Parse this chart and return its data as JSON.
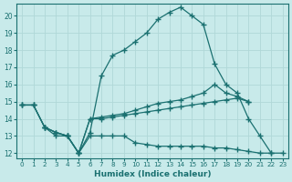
{
  "xlabel": "Humidex (Indice chaleur)",
  "background_color": "#c8eaea",
  "grid_color": "#b0d8d8",
  "line_color": "#1a7070",
  "xlim": [
    -0.5,
    23.5
  ],
  "ylim": [
    11.7,
    20.7
  ],
  "yticks": [
    12,
    13,
    14,
    15,
    16,
    17,
    18,
    19,
    20
  ],
  "xticks": [
    0,
    1,
    2,
    3,
    4,
    5,
    6,
    7,
    8,
    9,
    10,
    11,
    12,
    13,
    14,
    15,
    16,
    17,
    18,
    19,
    20,
    21,
    22,
    23
  ],
  "lines": [
    {
      "x": [
        0,
        1,
        2,
        3,
        4,
        5,
        6,
        7,
        8,
        9,
        10,
        11,
        12,
        13,
        14,
        15,
        16,
        17,
        18,
        19,
        20,
        21,
        22
      ],
      "y": [
        14.8,
        14.8,
        13.5,
        13.0,
        13.0,
        12.0,
        13.2,
        16.5,
        17.7,
        18.0,
        18.5,
        19.0,
        19.8,
        20.2,
        20.5,
        20.0,
        19.5,
        17.2,
        16.0,
        15.5,
        14.0,
        13.0,
        12.0
      ]
    },
    {
      "x": [
        0,
        1,
        2,
        3,
        4,
        5,
        6,
        7,
        8,
        9,
        10,
        11,
        12,
        13,
        14,
        15,
        16,
        17,
        18,
        19,
        20
      ],
      "y": [
        14.8,
        14.8,
        13.5,
        13.2,
        13.0,
        12.0,
        14.0,
        14.1,
        14.2,
        14.3,
        14.5,
        14.7,
        14.9,
        15.0,
        15.1,
        15.3,
        15.5,
        16.0,
        15.5,
        15.3,
        15.0
      ]
    },
    {
      "x": [
        0,
        1,
        2,
        3,
        4,
        5,
        6,
        7,
        8,
        9,
        10,
        11,
        12,
        13,
        14,
        15,
        16,
        17,
        18,
        19,
        20
      ],
      "y": [
        14.8,
        14.8,
        13.5,
        13.2,
        13.0,
        12.0,
        14.0,
        14.0,
        14.1,
        14.2,
        14.3,
        14.4,
        14.5,
        14.6,
        14.7,
        14.8,
        14.9,
        15.0,
        15.1,
        15.2,
        15.0
      ]
    },
    {
      "x": [
        2,
        3,
        4,
        5,
        6,
        7,
        8,
        9,
        10,
        11,
        12,
        13,
        14,
        15,
        16,
        17,
        18,
        19,
        20,
        21,
        22,
        23
      ],
      "y": [
        13.5,
        13.2,
        13.0,
        12.0,
        13.0,
        13.0,
        13.0,
        13.0,
        12.6,
        12.5,
        12.4,
        12.4,
        12.4,
        12.4,
        12.4,
        12.3,
        12.3,
        12.2,
        12.1,
        12.0,
        12.0,
        12.0
      ]
    }
  ]
}
